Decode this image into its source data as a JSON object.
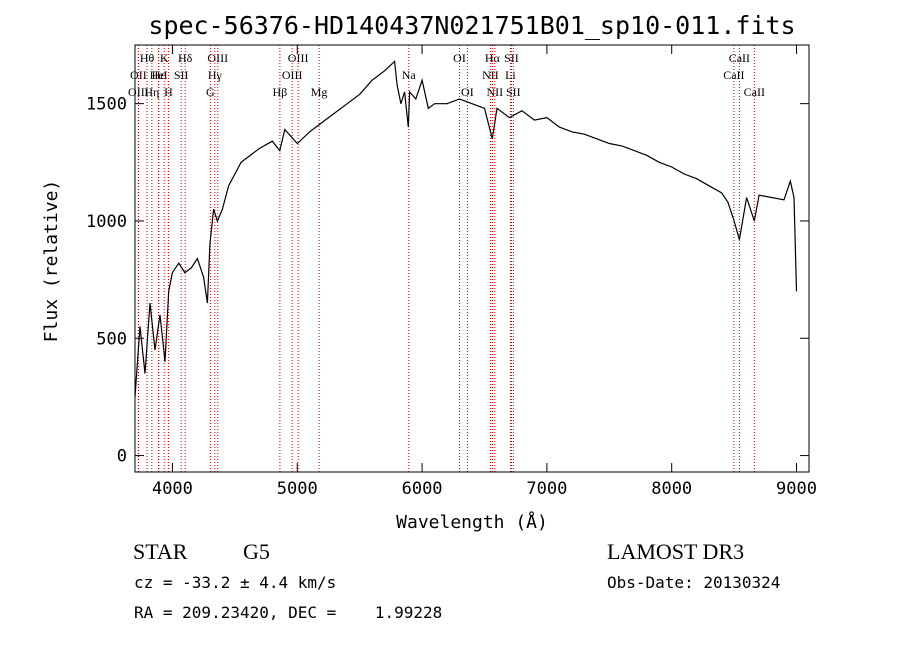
{
  "chart_data": {
    "type": "line",
    "title": "spec-56376-HD140437N021751B01_sp10-011.fits",
    "xlabel": "Wavelength (Å)",
    "ylabel": "Flux (relative)",
    "xlim": [
      3700,
      9100
    ],
    "ylim": [
      -70,
      1750
    ],
    "xticks": [
      4000,
      5000,
      6000,
      7000,
      8000,
      9000
    ],
    "yticks": [
      0,
      500,
      1000,
      1500
    ],
    "grid": false,
    "line_color": "#000000",
    "marker_color": "#cc0000",
    "series": [
      {
        "x": [
          3700,
          3740,
          3780,
          3820,
          3860,
          3900,
          3940,
          3970,
          4000,
          4050,
          4100,
          4150,
          4200,
          4250,
          4280,
          4300,
          4330,
          4360,
          4400,
          4450,
          4500,
          4550,
          4600,
          4700,
          4800,
          4860,
          4900,
          5000,
          5100,
          5200,
          5300,
          5400,
          5500,
          5600,
          5700,
          5780,
          5800,
          5830,
          5860,
          5890,
          5900,
          5950,
          6000,
          6050,
          6100,
          6200,
          6300,
          6400,
          6500,
          6563,
          6600,
          6700,
          6800,
          6900,
          7000,
          7100,
          7200,
          7300,
          7400,
          7500,
          7600,
          7700,
          7800,
          7900,
          8000,
          8100,
          8200,
          8300,
          8400,
          8450,
          8500,
          8542,
          8600,
          8662,
          8700,
          8800,
          8900,
          8950,
          8980,
          9000
        ],
        "y": [
          250,
          550,
          350,
          650,
          450,
          600,
          400,
          700,
          780,
          820,
          780,
          800,
          840,
          760,
          650,
          900,
          1050,
          1000,
          1050,
          1150,
          1200,
          1250,
          1270,
          1310,
          1340,
          1300,
          1390,
          1330,
          1380,
          1420,
          1460,
          1500,
          1540,
          1600,
          1640,
          1680,
          1580,
          1500,
          1550,
          1400,
          1550,
          1520,
          1600,
          1480,
          1500,
          1500,
          1520,
          1500,
          1480,
          1350,
          1480,
          1440,
          1470,
          1430,
          1440,
          1400,
          1380,
          1370,
          1350,
          1330,
          1320,
          1300,
          1280,
          1250,
          1230,
          1200,
          1180,
          1150,
          1120,
          1080,
          1000,
          920,
          1100,
          1000,
          1110,
          1100,
          1090,
          1170,
          1100,
          700
        ]
      }
    ],
    "line_markers": [
      {
        "label": "Hθ",
        "wavelength": 3797,
        "row": 1
      },
      {
        "label": "OII",
        "wavelength": 3727,
        "row": 2
      },
      {
        "label": "OIII",
        "wavelength": 3727,
        "row": 3
      },
      {
        "label": "Hε",
        "wavelength": 3889,
        "row": 2
      },
      {
        "label": "HeI",
        "wavelength": 3889,
        "row": 2
      },
      {
        "label": "Hη",
        "wavelength": 3835,
        "row": 3
      },
      {
        "label": "K",
        "wavelength": 3934,
        "row": 1
      },
      {
        "label": "SII",
        "wavelength": 4070,
        "row": 2
      },
      {
        "label": "H",
        "wavelength": 3968,
        "row": 3
      },
      {
        "label": "Hδ",
        "wavelength": 4102,
        "row": 1
      },
      {
        "label": "OIII",
        "wavelength": 4363,
        "row": 1
      },
      {
        "label": "Hγ",
        "wavelength": 4340,
        "row": 2
      },
      {
        "label": "G",
        "wavelength": 4304,
        "row": 3
      },
      {
        "label": "Hβ",
        "wavelength": 4861,
        "row": 3
      },
      {
        "label": "OIII",
        "wavelength": 5007,
        "row": 1
      },
      {
        "label": "OIII",
        "wavelength": 4959,
        "row": 2
      },
      {
        "label": "Mg",
        "wavelength": 5175,
        "row": 3
      },
      {
        "label": "Na",
        "wavelength": 5893,
        "row": 2
      },
      {
        "label": "OI",
        "wavelength": 6300,
        "row": 1
      },
      {
        "label": "OI",
        "wavelength": 6363,
        "row": 3
      },
      {
        "label": "Hα",
        "wavelength": 6563,
        "row": 1
      },
      {
        "label": "SII",
        "wavelength": 6716,
        "row": 1
      },
      {
        "label": "NII",
        "wavelength": 6548,
        "row": 2
      },
      {
        "label": "Li",
        "wavelength": 6708,
        "row": 2
      },
      {
        "label": "NII",
        "wavelength": 6583,
        "row": 3
      },
      {
        "label": "SII",
        "wavelength": 6731,
        "row": 3
      },
      {
        "label": "CaII",
        "wavelength": 8542,
        "row": 1
      },
      {
        "label": "CaII",
        "wavelength": 8498,
        "row": 2
      },
      {
        "label": "CaII",
        "wavelength": 8662,
        "row": 3
      }
    ]
  },
  "info": {
    "object_class": "STAR",
    "subclass": "G5",
    "survey": "LAMOST DR3",
    "cz": "cz = -33.2 ± 4.4 km/s",
    "obs_date": "Obs-Date: 20130324",
    "coords": "RA = 209.23420, DEC =    1.99228"
  }
}
